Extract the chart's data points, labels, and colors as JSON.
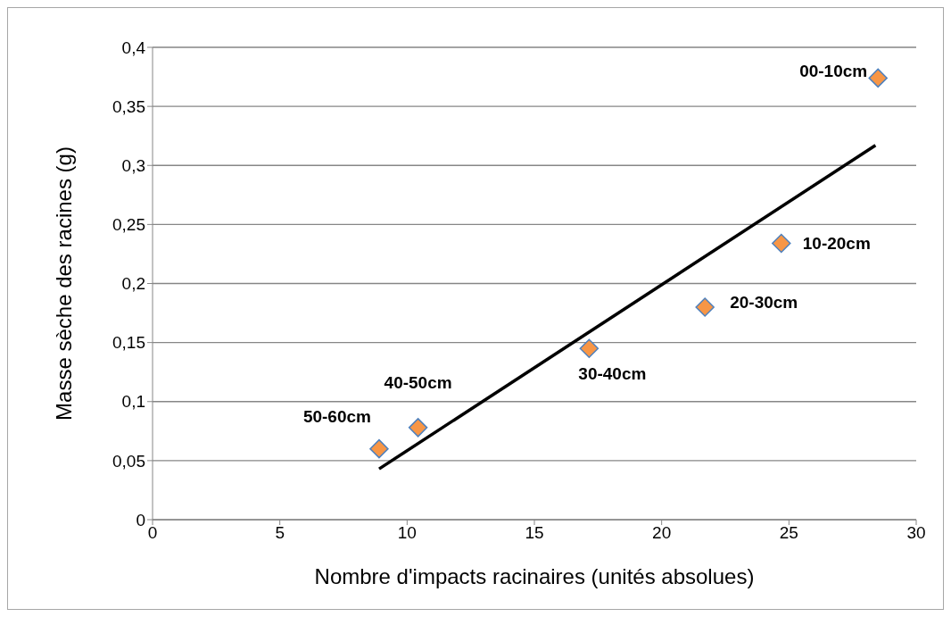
{
  "chart_data": {
    "type": "scatter",
    "xlabel": "Nombre d'impacts racinaires (unités absolues)",
    "ylabel": "Masse sèche des racines (g)",
    "series": [
      {
        "color": "#f79646",
        "x": [
          28.5,
          24.7,
          21.7,
          17.15,
          10.43,
          8.9
        ],
        "values": [
          0.374,
          0.234,
          0.18,
          0.145,
          0.078,
          0.06
        ]
      },
      {
        "type": "line",
        "color": "#000000",
        "marker": "none",
        "x": [
          8.9,
          28.4
        ],
        "values": [
          0.043,
          0.317
        ]
      }
    ],
    "annotations": [
      {
        "text": "00-10cm",
        "x": 28.5,
        "y": 0.374
      },
      {
        "text": "10-20cm",
        "x": 24.7,
        "y": 0.234
      },
      {
        "text": "20-30cm",
        "x": 21.7,
        "y": 0.18
      },
      {
        "text": "30-40cm",
        "x": 17.15,
        "y": 0.145
      },
      {
        "text": "40-50cm",
        "x": 10.43,
        "y": 0.078
      },
      {
        "text": "50-60cm",
        "x": 8.9,
        "y": 0.06
      }
    ],
    "xlim": [
      0,
      30
    ],
    "xticks": [
      0,
      5,
      10,
      15,
      20,
      25,
      30
    ],
    "ylim": [
      0,
      0.4
    ],
    "yticks": [
      0,
      {
        "value": 0.05,
        "label": "0,05"
      },
      {
        "value": 0.1,
        "label": "0,1"
      },
      {
        "value": 0.15,
        "label": "0,15"
      },
      {
        "value": 0.2,
        "label": "0,2"
      },
      {
        "value": 0.25,
        "label": "0,25"
      },
      {
        "value": 0.3,
        "label": "0,3"
      },
      {
        "value": 0.35,
        "label": "0,35"
      },
      {
        "value": 0.4,
        "label": "0,4"
      }
    ],
    "grid": "y",
    "legend": false,
    "marker": "diamond"
  }
}
